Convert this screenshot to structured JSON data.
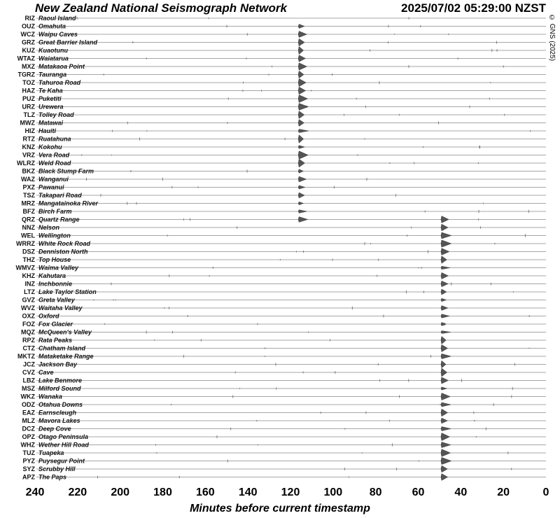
{
  "chart_data": {
    "type": "line",
    "title": "New Zealand National Seismograph Network",
    "timestamp": "2025/07/02 05:29:00 NZST",
    "copyright": "© GNS (2025)",
    "xlabel": "Minutes before current timestamp",
    "xlim": [
      240,
      0
    ],
    "xticks": [
      240,
      220,
      200,
      180,
      160,
      140,
      120,
      100,
      80,
      60,
      40,
      20,
      0
    ],
    "stations": [
      {
        "code": "RIZ",
        "name": "Raoul Island"
      },
      {
        "code": "OUZ",
        "name": "Omahuta"
      },
      {
        "code": "WCZ",
        "name": "Waipu Caves"
      },
      {
        "code": "GRZ",
        "name": "Great Barrier Island"
      },
      {
        "code": "KUZ",
        "name": "Kuaotunu"
      },
      {
        "code": "WTAZ",
        "name": "Waiatarua"
      },
      {
        "code": "MXZ",
        "name": "Matakaoa Point"
      },
      {
        "code": "TGRZ",
        "name": "Tauranga"
      },
      {
        "code": "TOZ",
        "name": "Tahuroa Road"
      },
      {
        "code": "HAZ",
        "name": "Te Kaha"
      },
      {
        "code": "PUZ",
        "name": "Puketiti"
      },
      {
        "code": "URZ",
        "name": "Urewera"
      },
      {
        "code": "TLZ",
        "name": "Tolley Road"
      },
      {
        "code": "MWZ",
        "name": "Matawai"
      },
      {
        "code": "HIZ",
        "name": "Hauiti"
      },
      {
        "code": "RTZ",
        "name": "Ruatahuna"
      },
      {
        "code": "KNZ",
        "name": "Kokohu"
      },
      {
        "code": "VRZ",
        "name": "Vera Road"
      },
      {
        "code": "WLRZ",
        "name": "Weld Road"
      },
      {
        "code": "BKZ",
        "name": "Black Stump Farm"
      },
      {
        "code": "WAZ",
        "name": "Wanganui"
      },
      {
        "code": "PXZ",
        "name": "Pawanui"
      },
      {
        "code": "TSZ",
        "name": "Takapari Road"
      },
      {
        "code": "MRZ",
        "name": "Mangatainoka River"
      },
      {
        "code": "BFZ",
        "name": "Birch Farm"
      },
      {
        "code": "QRZ",
        "name": "Quartz Range"
      },
      {
        "code": "NNZ",
        "name": "Nelson"
      },
      {
        "code": "WEL",
        "name": "Wellington"
      },
      {
        "code": "WRRZ",
        "name": "White Rock Road"
      },
      {
        "code": "DSZ",
        "name": "Denniston North"
      },
      {
        "code": "THZ",
        "name": "Top House"
      },
      {
        "code": "WMVZ",
        "name": "Waima Valley"
      },
      {
        "code": "KHZ",
        "name": "Kahutara"
      },
      {
        "code": "INZ",
        "name": "Inchbonnie"
      },
      {
        "code": "LTZ",
        "name": "Lake Taylor Station"
      },
      {
        "code": "GVZ",
        "name": "Greta Valley"
      },
      {
        "code": "WVZ",
        "name": "Waitaha Valley"
      },
      {
        "code": "OXZ",
        "name": "Oxford"
      },
      {
        "code": "FOZ",
        "name": "Fox Glacier"
      },
      {
        "code": "MQZ",
        "name": "McQueen's Valley"
      },
      {
        "code": "RPZ",
        "name": "Rata Peaks"
      },
      {
        "code": "CTZ",
        "name": "Chatham Island"
      },
      {
        "code": "MKTZ",
        "name": "Mataketake Range"
      },
      {
        "code": "JCZ",
        "name": "Jackson Bay"
      },
      {
        "code": "CVZ",
        "name": "Cave"
      },
      {
        "code": "LBZ",
        "name": "Lake Benmore"
      },
      {
        "code": "MSZ",
        "name": "Milford Sound"
      },
      {
        "code": "WKZ",
        "name": "Wanaka"
      },
      {
        "code": "ODZ",
        "name": "Otahua Downs"
      },
      {
        "code": "EAZ",
        "name": "Earnscleugh"
      },
      {
        "code": "MLZ",
        "name": "Mavora Lakes"
      },
      {
        "code": "DCZ",
        "name": "Deep Cove"
      },
      {
        "code": "OPZ",
        "name": "Otago Peninsula"
      },
      {
        "code": "WHZ",
        "name": "Wether Hill Road"
      },
      {
        "code": "TUZ",
        "name": "Tuapeka"
      },
      {
        "code": "PYZ",
        "name": "Puysegur Point"
      },
      {
        "code": "SYZ",
        "name": "Scrubby Hill"
      },
      {
        "code": "APZ",
        "name": "The Paps"
      }
    ],
    "events": [
      {
        "minutes_before": 116,
        "station_range": [
          "OUZ",
          "QRZ"
        ]
      },
      {
        "minutes_before": 49,
        "station_range": [
          "QRZ",
          "APZ"
        ]
      }
    ]
  }
}
